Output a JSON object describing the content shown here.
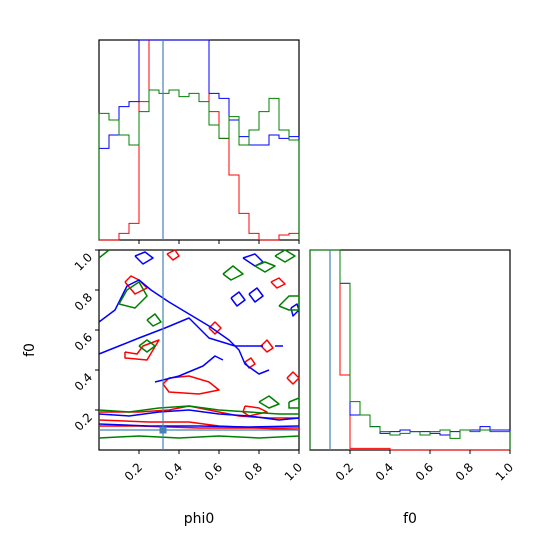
{
  "chart_data": {
    "type": "corner",
    "parameters": [
      "phi0",
      "f0"
    ],
    "axis_range": [
      0,
      1
    ],
    "truth": {
      "phi0": 0.32,
      "f0": 0.1
    },
    "truth_color": "#4682b4",
    "series_colors": {
      "red": "#ff0000",
      "blue": "#0000ff",
      "green": "#008000"
    },
    "xticks": [
      "0.2",
      "0.4",
      "0.6",
      "0.8",
      "1.0"
    ],
    "yticks": [
      "0.2",
      "0.4",
      "0.6",
      "0.8",
      "1.0"
    ],
    "xlabels": {
      "phi0": "phi0",
      "f0": "f0"
    },
    "ylabel": "f0",
    "hist_phi0": {
      "bins": 20,
      "red": [
        0.0,
        0.0,
        0.04,
        0.1,
        0.83,
        1.2,
        1.2,
        1.2,
        1.2,
        1.2,
        1.2,
        0.77,
        0.61,
        0.39,
        0.16,
        0.04,
        0.0,
        0.0,
        0.03,
        0.04
      ],
      "blue": [
        0.55,
        0.63,
        0.8,
        0.83,
        1.2,
        1.2,
        1.2,
        1.2,
        1.2,
        1.2,
        1.2,
        0.88,
        0.85,
        0.72,
        0.62,
        0.57,
        0.57,
        0.63,
        0.61,
        0.62
      ],
      "green": [
        0.76,
        0.72,
        0.63,
        0.57,
        0.77,
        0.9,
        0.88,
        0.9,
        0.86,
        0.88,
        0.83,
        0.69,
        0.61,
        0.74,
        0.57,
        0.66,
        0.77,
        0.85,
        0.66,
        0.6
      ]
    },
    "hist_f0": {
      "bins": 20,
      "red": [
        1.2,
        1.2,
        1.2,
        0.45,
        0.01,
        0.01,
        0.01,
        0.01,
        0.0,
        0.0,
        0.0,
        0.0,
        0.0,
        0.0,
        0.0,
        0.0,
        0.0,
        0.0,
        0.0,
        0.0
      ],
      "blue": [
        1.2,
        1.2,
        1.2,
        1.0,
        0.21,
        0.21,
        0.14,
        0.1,
        0.11,
        0.12,
        0.11,
        0.11,
        0.1,
        0.09,
        0.11,
        0.12,
        0.12,
        0.14,
        0.12,
        0.12
      ],
      "green": [
        1.2,
        1.2,
        1.2,
        1.0,
        0.29,
        0.21,
        0.14,
        0.11,
        0.09,
        0.1,
        0.11,
        0.09,
        0.11,
        0.12,
        0.07,
        0.12,
        0.11,
        0.12,
        0.11,
        0.11
      ]
    },
    "contours": {
      "red": [
        [
          [
            0,
            0.19
          ],
          [
            0.2,
            0.19
          ],
          [
            0.35,
            0.2
          ],
          [
            0.45,
            0.22
          ],
          [
            0.55,
            0.2
          ],
          [
            0.7,
            0.17
          ],
          [
            0.85,
            0.16
          ],
          [
            1.0,
            0.16
          ]
        ],
        [
          [
            0,
            0.15
          ],
          [
            0.25,
            0.14
          ],
          [
            0.45,
            0.14
          ],
          [
            0.6,
            0.12
          ],
          [
            0.8,
            0.11
          ],
          [
            1.0,
            0.1
          ]
        ],
        [
          [
            0,
            0.12
          ],
          [
            0.2,
            0.12
          ],
          [
            0.35,
            0.115
          ],
          [
            0.5,
            0.11
          ],
          [
            0.7,
            0.11
          ],
          [
            1.0,
            0.11
          ]
        ],
        [
          [
            0.35,
            0.36
          ],
          [
            0.45,
            0.37
          ],
          [
            0.55,
            0.34
          ],
          [
            0.6,
            0.3
          ],
          [
            0.5,
            0.28
          ],
          [
            0.35,
            0.29
          ],
          [
            0.32,
            0.33
          ],
          [
            0.35,
            0.36
          ]
        ],
        [
          [
            0.13,
            0.49
          ],
          [
            0.19,
            0.48
          ],
          [
            0.22,
            0.52
          ],
          [
            0.3,
            0.55
          ],
          [
            0.24,
            0.45
          ],
          [
            0.13,
            0.46
          ],
          [
            0.13,
            0.49
          ]
        ],
        [
          [
            0.73,
            0.22
          ],
          [
            0.8,
            0.21
          ],
          [
            0.84,
            0.19
          ],
          [
            0.75,
            0.17
          ],
          [
            0.72,
            0.19
          ],
          [
            0.73,
            0.22
          ]
        ],
        [
          [
            0.13,
            0.84
          ],
          [
            0.16,
            0.87
          ],
          [
            0.2,
            0.85
          ],
          [
            0.24,
            0.81
          ],
          [
            0.18,
            0.78
          ],
          [
            0.13,
            0.84
          ]
        ],
        [
          [
            0.34,
            0.98
          ],
          [
            0.38,
            1.0
          ],
          [
            0.4,
            0.97
          ],
          [
            0.37,
            0.95
          ],
          [
            0.34,
            0.98
          ]
        ],
        [
          [
            0.55,
            0.61
          ],
          [
            0.58,
            0.64
          ],
          [
            0.61,
            0.61
          ],
          [
            0.58,
            0.58
          ],
          [
            0.55,
            0.61
          ]
        ],
        [
          [
            0.81,
            0.52
          ],
          [
            0.84,
            0.55
          ],
          [
            0.87,
            0.51
          ],
          [
            0.84,
            0.49
          ],
          [
            0.81,
            0.52
          ]
        ],
        [
          [
            0.73,
            0.44
          ],
          [
            0.76,
            0.46
          ],
          [
            0.78,
            0.43
          ],
          [
            0.75,
            0.41
          ],
          [
            0.73,
            0.44
          ]
        ],
        [
          [
            0.94,
            0.36
          ],
          [
            0.97,
            0.39
          ],
          [
            1.0,
            0.36
          ],
          [
            0.97,
            0.33
          ],
          [
            0.94,
            0.36
          ]
        ],
        [
          [
            0.86,
            0.84
          ],
          [
            0.9,
            0.86
          ],
          [
            0.93,
            0.83
          ],
          [
            0.89,
            0.81
          ],
          [
            0.86,
            0.84
          ]
        ]
      ],
      "blue": [
        [
          [
            0,
            0.18
          ],
          [
            0.15,
            0.17
          ],
          [
            0.3,
            0.19
          ],
          [
            0.45,
            0.2
          ],
          [
            0.6,
            0.18
          ],
          [
            0.75,
            0.17
          ],
          [
            0.9,
            0.15
          ],
          [
            1.0,
            0.16
          ]
        ],
        [
          [
            0,
            0.13
          ],
          [
            0.25,
            0.12
          ],
          [
            0.5,
            0.12
          ],
          [
            0.75,
            0.115
          ],
          [
            1.0,
            0.12
          ]
        ],
        [
          [
            0,
            0.48
          ],
          [
            0.1,
            0.52
          ],
          [
            0.2,
            0.56
          ],
          [
            0.33,
            0.61
          ],
          [
            0.45,
            0.66
          ],
          [
            0.55,
            0.56
          ],
          [
            0.68,
            0.52
          ],
          [
            0.82,
            0.52
          ]
        ],
        [
          [
            0,
            0.64
          ],
          [
            0.08,
            0.7
          ],
          [
            0.14,
            0.82
          ],
          [
            0.2,
            0.85
          ],
          [
            0.26,
            0.8
          ],
          [
            0.35,
            0.74
          ],
          [
            0.45,
            0.68
          ],
          [
            0.55,
            0.62
          ],
          [
            0.65,
            0.55
          ],
          [
            0.7,
            0.5
          ],
          [
            0.73,
            0.43
          ],
          [
            0.8,
            0.38
          ],
          [
            0.85,
            0.4
          ]
        ],
        [
          [
            0.28,
            0.34
          ],
          [
            0.4,
            0.37
          ],
          [
            0.52,
            0.42
          ],
          [
            0.58,
            0.47
          ],
          [
            0.62,
            0.45
          ]
        ],
        [
          [
            0.72,
            0.96
          ],
          [
            0.78,
            0.98
          ],
          [
            0.82,
            0.94
          ],
          [
            0.78,
            0.92
          ],
          [
            0.72,
            0.96
          ]
        ],
        [
          [
            0.66,
            0.76
          ],
          [
            0.7,
            0.79
          ],
          [
            0.73,
            0.75
          ],
          [
            0.69,
            0.72
          ],
          [
            0.66,
            0.76
          ]
        ],
        [
          [
            0.75,
            0.78
          ],
          [
            0.79,
            0.81
          ],
          [
            0.82,
            0.77
          ],
          [
            0.78,
            0.74
          ],
          [
            0.75,
            0.78
          ]
        ],
        [
          [
            0.96,
            0.71
          ],
          [
            0.99,
            0.73
          ],
          [
            1.0,
            0.7
          ],
          [
            0.97,
            0.67
          ],
          [
            0.96,
            0.71
          ]
        ],
        [
          [
            0.18,
            0.97
          ],
          [
            0.23,
            0.99
          ],
          [
            0.27,
            0.96
          ],
          [
            0.22,
            0.93
          ],
          [
            0.18,
            0.97
          ]
        ],
        [
          [
            0.88,
            0.52
          ],
          [
            0.92,
            0.52
          ]
        ]
      ],
      "green": [
        [
          [
            0,
            0.2
          ],
          [
            0.15,
            0.19
          ],
          [
            0.3,
            0.21
          ],
          [
            0.45,
            0.22
          ],
          [
            0.6,
            0.2
          ],
          [
            0.75,
            0.19
          ],
          [
            0.9,
            0.18
          ],
          [
            1.0,
            0.18
          ]
        ],
        [
          [
            0,
            0.06
          ],
          [
            0.2,
            0.07
          ],
          [
            0.4,
            0.06
          ],
          [
            0.6,
            0.07
          ],
          [
            0.8,
            0.06
          ],
          [
            1.0,
            0.07
          ]
        ],
        [
          [
            0.1,
            0.73
          ],
          [
            0.14,
            0.8
          ],
          [
            0.2,
            0.84
          ],
          [
            0.24,
            0.77
          ],
          [
            0.18,
            0.71
          ],
          [
            0.1,
            0.73
          ]
        ],
        [
          [
            0.62,
            0.88
          ],
          [
            0.67,
            0.92
          ],
          [
            0.72,
            0.88
          ],
          [
            0.66,
            0.85
          ],
          [
            0.62,
            0.88
          ]
        ],
        [
          [
            0.78,
            0.92
          ],
          [
            0.83,
            0.94
          ],
          [
            0.88,
            0.92
          ],
          [
            0.83,
            0.89
          ],
          [
            0.78,
            0.92
          ]
        ],
        [
          [
            0.88,
            0.97
          ],
          [
            0.93,
            1.0
          ],
          [
            0.98,
            0.97
          ],
          [
            0.93,
            0.94
          ],
          [
            0.88,
            0.97
          ]
        ],
        [
          [
            0.9,
            0.72
          ],
          [
            0.95,
            0.77
          ],
          [
            1.0,
            0.77
          ],
          [
            1.0,
            0.7
          ],
          [
            0.95,
            0.7
          ],
          [
            0.9,
            0.72
          ]
        ],
        [
          [
            0.2,
            0.52
          ],
          [
            0.24,
            0.55
          ],
          [
            0.28,
            0.52
          ],
          [
            0.24,
            0.49
          ],
          [
            0.2,
            0.52
          ]
        ],
        [
          [
            0.8,
            0.24
          ],
          [
            0.85,
            0.27
          ],
          [
            0.9,
            0.23
          ],
          [
            0.85,
            0.21
          ],
          [
            0.8,
            0.24
          ]
        ],
        [
          [
            0.95,
            0.24
          ],
          [
            1.0,
            0.26
          ],
          [
            1.0,
            0.21
          ],
          [
            0.95,
            0.21
          ],
          [
            0.95,
            0.24
          ]
        ],
        [
          [
            0.0,
            0.96
          ],
          [
            0.05,
            1.0
          ]
        ],
        [
          [
            0.24,
            0.65
          ],
          [
            0.28,
            0.68
          ],
          [
            0.31,
            0.64
          ],
          [
            0.27,
            0.62
          ],
          [
            0.24,
            0.65
          ]
        ]
      ]
    }
  }
}
